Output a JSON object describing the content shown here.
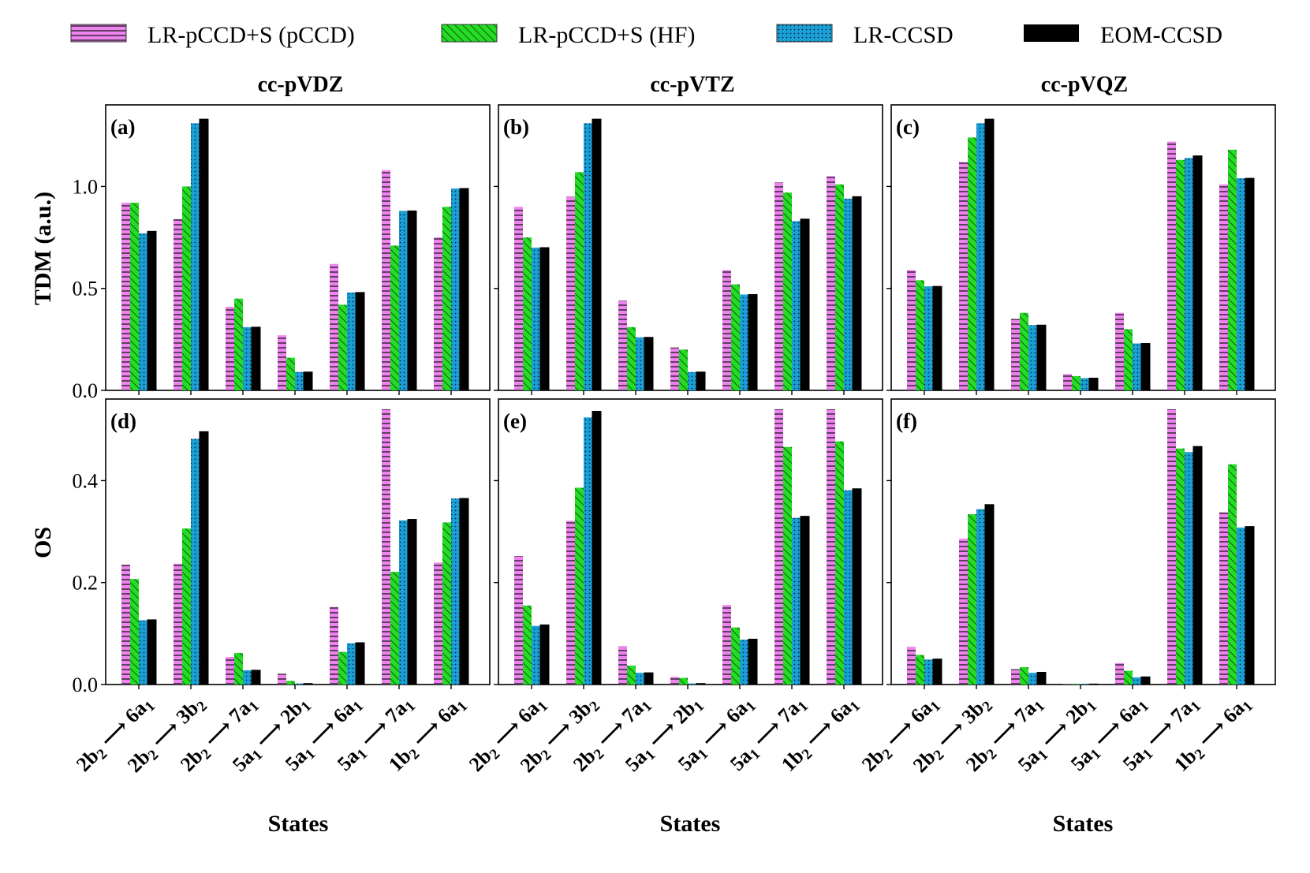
{
  "chart_data": {
    "type": "bar",
    "legend_position": "top",
    "series": [
      {
        "name": "LR-pCCD+S (pCCD)",
        "color": "#ee82ee",
        "pattern": "horizontal-hatch"
      },
      {
        "name": "LR-pCCD+S (HF)",
        "color": "#22dd22",
        "pattern": "diagonal-hatch"
      },
      {
        "name": "LR-CCSD",
        "color": "#1a9fd6",
        "pattern": "dotted"
      },
      {
        "name": "EOM-CCSD",
        "color": "#000000",
        "pattern": "solid"
      }
    ],
    "columns": [
      "cc-pVDZ",
      "cc-pVTZ",
      "cc-pVQZ"
    ],
    "categories": [
      {
        "from": "2b",
        "from_sub": "2",
        "to": "6a",
        "to_sub": "1"
      },
      {
        "from": "2b",
        "from_sub": "2",
        "to": "3b",
        "to_sub": "2"
      },
      {
        "from": "2b",
        "from_sub": "2",
        "to": "7a",
        "to_sub": "1"
      },
      {
        "from": "5a",
        "from_sub": "1",
        "to": "2b",
        "to_sub": "1"
      },
      {
        "from": "5a",
        "from_sub": "1",
        "to": "6a",
        "to_sub": "1"
      },
      {
        "from": "5a",
        "from_sub": "1",
        "to": "7a",
        "to_sub": "1"
      },
      {
        "from": "1b",
        "from_sub": "2",
        "to": "6a",
        "to_sub": "1"
      }
    ],
    "arrow": "⟶",
    "xlabel": "States",
    "rows": [
      {
        "ylabel": "TDM (a.u.)",
        "ylim": [
          0,
          1.4
        ],
        "ticks": [
          0.0,
          0.5,
          1.0
        ],
        "tick_labels": [
          "0.0",
          "0.5",
          "1.0"
        ],
        "tick_labels_columns": [
          0
        ]
      },
      {
        "ylabel": "OS",
        "ylim": [
          0,
          0.56
        ],
        "ticks": [
          0.0,
          0.2,
          0.4
        ],
        "tick_labels": [
          "0.0",
          "0.2",
          "0.4"
        ],
        "tick_labels_columns": [
          0
        ]
      }
    ],
    "panels": [
      {
        "tag": "(a)",
        "row": 0,
        "col": 0,
        "values": [
          [
            0.92,
            0.84,
            0.41,
            0.27,
            0.62,
            1.08,
            0.75
          ],
          [
            0.92,
            1.0,
            0.45,
            0.16,
            0.42,
            0.71,
            0.9
          ],
          [
            0.77,
            1.31,
            0.31,
            0.09,
            0.48,
            0.88,
            0.99
          ],
          [
            0.78,
            1.33,
            0.31,
            0.09,
            0.48,
            0.88,
            0.99
          ]
        ]
      },
      {
        "tag": "(b)",
        "row": 0,
        "col": 1,
        "values": [
          [
            0.9,
            0.95,
            0.44,
            0.21,
            0.59,
            1.02,
            1.05
          ],
          [
            0.75,
            1.07,
            0.31,
            0.2,
            0.52,
            0.97,
            1.01
          ],
          [
            0.7,
            1.31,
            0.26,
            0.09,
            0.47,
            0.83,
            0.94
          ],
          [
            0.7,
            1.33,
            0.26,
            0.09,
            0.47,
            0.84,
            0.95
          ]
        ]
      },
      {
        "tag": "(c)",
        "row": 0,
        "col": 2,
        "values": [
          [
            0.59,
            1.12,
            0.35,
            0.08,
            0.38,
            1.22,
            1.01
          ],
          [
            0.54,
            1.24,
            0.38,
            0.07,
            0.3,
            1.13,
            1.18
          ],
          [
            0.51,
            1.31,
            0.32,
            0.06,
            0.23,
            1.14,
            1.04
          ],
          [
            0.51,
            1.33,
            0.32,
            0.06,
            0.23,
            1.15,
            1.04
          ]
        ]
      },
      {
        "tag": "(d)",
        "row": 1,
        "col": 0,
        "values": [
          [
            0.235,
            0.237,
            0.054,
            0.021,
            0.152,
            0.54,
            0.239
          ],
          [
            0.207,
            0.306,
            0.062,
            0.007,
            0.064,
            0.221,
            0.318
          ],
          [
            0.126,
            0.482,
            0.028,
            0.002,
            0.081,
            0.322,
            0.365
          ],
          [
            0.127,
            0.496,
            0.028,
            0.002,
            0.082,
            0.324,
            0.365
          ]
        ]
      },
      {
        "tag": "(e)",
        "row": 1,
        "col": 1,
        "values": [
          [
            0.252,
            0.321,
            0.075,
            0.015,
            0.156,
            0.54,
            0.54
          ],
          [
            0.155,
            0.386,
            0.037,
            0.013,
            0.112,
            0.466,
            0.477
          ],
          [
            0.115,
            0.524,
            0.023,
            0.002,
            0.088,
            0.327,
            0.381
          ],
          [
            0.117,
            0.536,
            0.023,
            0.002,
            0.089,
            0.33,
            0.384
          ]
        ]
      },
      {
        "tag": "(f)",
        "row": 1,
        "col": 2,
        "values": [
          [
            0.074,
            0.286,
            0.03,
            0.001,
            0.042,
            0.54,
            0.338
          ],
          [
            0.058,
            0.334,
            0.034,
            0.001,
            0.027,
            0.463,
            0.432
          ],
          [
            0.049,
            0.344,
            0.023,
            0.001,
            0.014,
            0.456,
            0.308
          ],
          [
            0.05,
            0.353,
            0.024,
            0.001,
            0.015,
            0.467,
            0.31
          ]
        ]
      }
    ]
  }
}
